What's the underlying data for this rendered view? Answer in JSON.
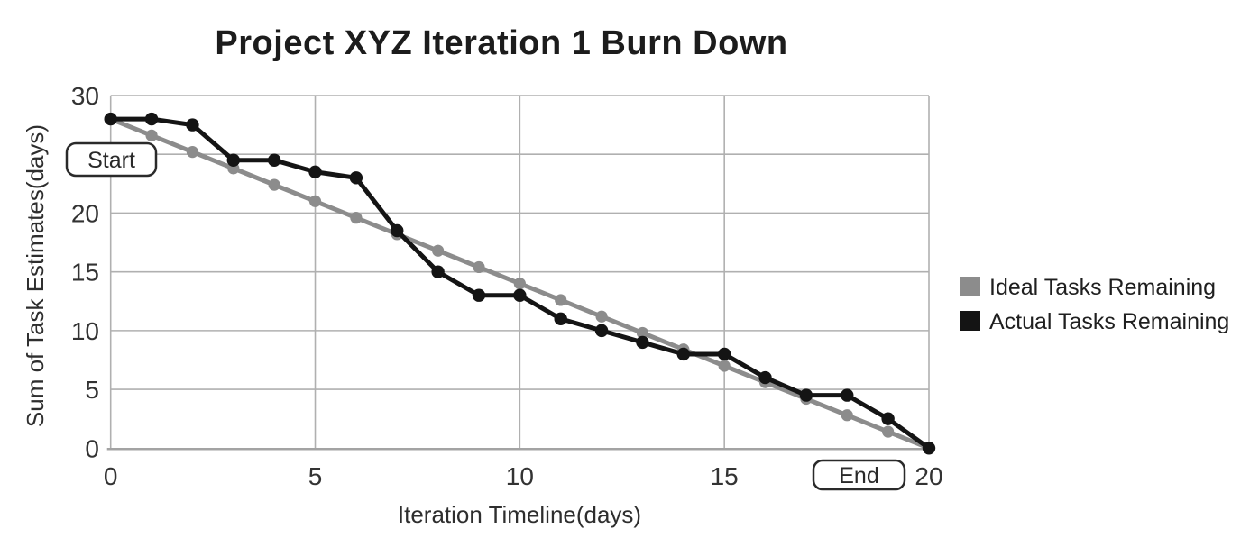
{
  "chart_data": {
    "type": "line",
    "title": "Project XYZ Iteration 1 Burn Down",
    "xlabel": "Iteration Timeline(days)",
    "ylabel": "Sum of Task Estimates(days)",
    "x": [
      0,
      1,
      2,
      3,
      4,
      5,
      6,
      7,
      8,
      9,
      10,
      11,
      12,
      13,
      14,
      15,
      16,
      17,
      18,
      19,
      20
    ],
    "series": [
      {
        "name": "Ideal Tasks Remaining",
        "color": "#8c8c8c",
        "values": [
          28,
          26.6,
          25.2,
          23.8,
          22.4,
          21,
          19.6,
          18.2,
          16.8,
          15.4,
          14,
          12.6,
          11.2,
          9.8,
          8.4,
          7,
          5.6,
          4.2,
          2.8,
          1.4,
          0
        ]
      },
      {
        "name": "Actual Tasks Remaining",
        "color": "#141414",
        "values": [
          28,
          28,
          27.5,
          24.5,
          24.5,
          23.5,
          23,
          18.5,
          15,
          13,
          13,
          11,
          10,
          9,
          8,
          8,
          6,
          4.5,
          4.5,
          2.5,
          0
        ]
      }
    ],
    "xlim": [
      0,
      20
    ],
    "ylim": [
      0,
      30
    ],
    "x_ticks": [
      0,
      5,
      10,
      15,
      20
    ],
    "y_ticks": [
      0,
      5,
      10,
      15,
      20,
      25,
      30
    ],
    "grid": true,
    "legend_position": "right",
    "annotations": [
      {
        "label": "Start",
        "position": "top-left"
      },
      {
        "label": "End",
        "position": "bottom-right"
      }
    ]
  },
  "colors": {
    "grid": "#b0b0b0",
    "axis": "#a3a3a3",
    "background": "#ffffff"
  }
}
